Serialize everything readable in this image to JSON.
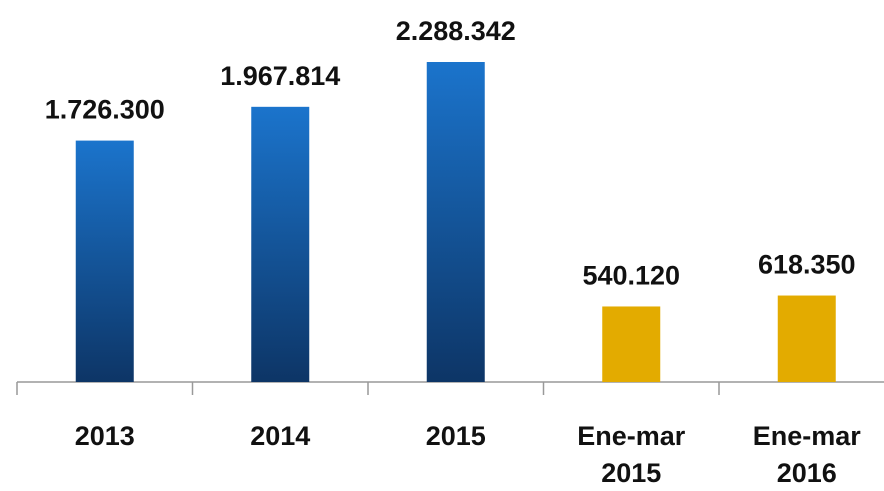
{
  "chart_data": {
    "type": "bar",
    "categories": [
      "2013",
      "2014",
      "2015",
      "Ene-mar 2015",
      "Ene-mar 2016"
    ],
    "values": [
      1726300,
      1967814,
      2288342,
      540120,
      618350
    ],
    "value_labels": [
      "1.726.300",
      "1.967.814",
      "2.288.342",
      "540.120",
      "618.350"
    ],
    "colors": [
      "#1b74cc",
      "#1b74cc",
      "#1b74cc",
      "#e3ab00",
      "#e3ab00"
    ]
  }
}
